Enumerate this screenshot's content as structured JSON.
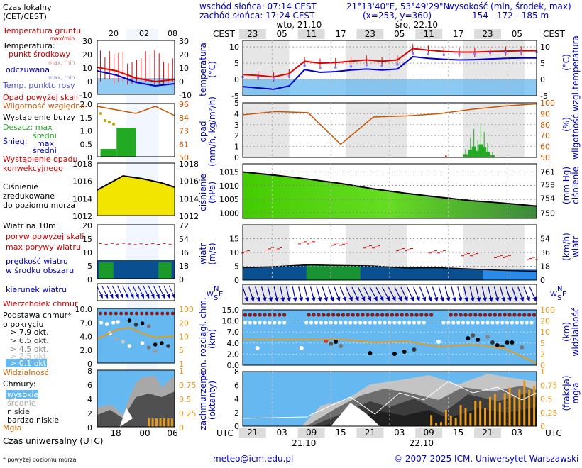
{
  "header": {
    "sunrise": "wschód słońca: 07:14 CEST",
    "sunset": "zachód słońca: 17:24 CEST",
    "coords": "21°13'40\"E, 53°49'29\"N",
    "grid": "(x=253, y=360)",
    "height_label": "wysokość (min, środek, max)",
    "height_values": "154 - 172 - 185 m"
  },
  "time_axis": {
    "top_label": "CEST",
    "top_hours": [
      "23",
      "05",
      "11",
      "17",
      "23",
      "05",
      "11",
      "17",
      "23",
      "05"
    ],
    "day_labels": [
      "wto, 21.10",
      "śro, 22.10"
    ],
    "bottom_label": "UTC",
    "bottom_hours": [
      "21",
      "03",
      "09",
      "15",
      "21",
      "03",
      "09",
      "15",
      "21",
      "03"
    ],
    "bottom_dates": [
      "21.10",
      "22.10"
    ]
  },
  "legend": {
    "timezone_title": "Czas lokalny\n(CET/CEST)",
    "timezone_hours": [
      "20",
      "02",
      "08"
    ],
    "ground_temp": "Temperatura gruntu",
    "ground_temp_sub": "max/min",
    "temperature": "Temperatura:",
    "mid_point": "punkt środkowy",
    "mid_point_sub": "max, min",
    "apparent": "odczuwana",
    "apparent_sub": "max, min",
    "dew_point": "Temp. punktu rosy",
    "temp_ticks": [
      "30",
      "20",
      "10",
      "0",
      "-10"
    ],
    "precip_over_scale": "Opad powyżej skali",
    "humidity": "Wilgotność względna",
    "storm": "Wystąpienie burzy",
    "rain": "Deszcz: max",
    "rain_mean": "średni",
    "snow": "Śnieg:",
    "snow_max": "max",
    "snow_mean": "średni",
    "precip_conv": "Wystąpienie opadu\nkonwekcyjnego",
    "precip_ticks": [
      "2.0",
      "1.5",
      "1.0",
      "0.5",
      "0"
    ],
    "hum_ticks": [
      "96",
      "84",
      "73",
      "61",
      "50"
    ],
    "pressure": "Ciśnienie\nzredukowane\ndo poziomu morza",
    "pressure_ticks": [
      "1018",
      "1016",
      "1014",
      "1012"
    ],
    "wind_title": "Wiatr na 10m:",
    "gust_over": "poryw powyżej skali",
    "gust_max": "max porywy wiatru",
    "wind_mean": "prędkość wiatru\nw środku obszaru",
    "wind_ticks": [
      "20",
      "15",
      "10",
      "5",
      "0"
    ],
    "wind_kmh_ticks": [
      "72",
      "54",
      "36",
      "18",
      "0"
    ],
    "wind_dir": "kierunek wiatru",
    "cloud_top": "Wierzchołek chmur",
    "cloud_base": "Podstawa chmur*\no pokryciu",
    "okt1": "> 7.9 okt.",
    "okt2": "> 6.5 okt.",
    "okt3": "> 4.5 okt.",
    "okt4": "> 2.5 okt.",
    "okt5": "> 0.1 okt.",
    "visibility": "Widzialność",
    "cb_ticks": [
      "10.0",
      "7.0",
      "4.0",
      "2.0",
      "0"
    ],
    "vis_ticks": [
      "100",
      "20",
      "10",
      "5",
      "1"
    ],
    "clouds": "Chmury:",
    "cl_high": "wysokie",
    "cl_mid": "średnie",
    "cl_low": "niskie",
    "cl_vlow": "bardzo niskie",
    "fog": "Mgła",
    "cc_ticks": [
      "8",
      "6",
      "4",
      "2",
      "0"
    ],
    "fog_ticks": [
      "1",
      "0.75",
      "0.5",
      "0.25",
      "0"
    ],
    "utc_hours": [
      "18",
      "00",
      "06"
    ],
    "utc_title": "Czas uniwersalny (UTC)",
    "footnote": "* powyżej poziomu morza"
  },
  "panels": {
    "temp": {
      "left": "temperatura\n(°C)",
      "right": "(°C)\ntemperatura",
      "ticks": [
        "10",
        "5",
        "0",
        "-5"
      ],
      "ticks_right": [
        "10",
        "5",
        "0",
        "-5"
      ]
    },
    "precip": {
      "left": "opad\n(mm/h, kg/m²/h)",
      "right": "(%)\nwilgotność wzgl.",
      "ticks": [
        "5",
        "4",
        "3",
        "2",
        "1",
        "0"
      ],
      "ticks_right": [
        "100",
        "90",
        "80",
        "70",
        "60",
        "50"
      ]
    },
    "pressure": {
      "left": "ciśnienie\n(hPa)",
      "right": "(mm Hg)\nciśnienie",
      "ticks": [
        "1015",
        "1010",
        "1005",
        "1000"
      ],
      "ticks_right": [
        "761",
        "758",
        "754",
        "750"
      ]
    },
    "wind": {
      "left": "wiatr\n(m/s)",
      "right": "(km/h)\nwiatr",
      "ticks": [
        "15",
        "10",
        "5",
        "0"
      ],
      "ticks_right": [
        "54",
        "36",
        "18",
        "0"
      ]
    },
    "winddir": {
      "left": "W\nS\nE\nN",
      "right": "W\nS\nE\nN"
    },
    "clouds": {
      "left": "pion. rozciągł. chm.\n(km)",
      "right": "(km)\nwidzialność",
      "ticks": [
        "15.0",
        "10.0",
        "7.0",
        "4.0",
        "2.0",
        "0.0"
      ],
      "ticks_right": [
        "100",
        "20",
        "10",
        "5",
        "2",
        "0"
      ]
    },
    "cover": {
      "left": "zachmurzenie\n(oktanty)",
      "right": "(frakcja)\nmgła",
      "ticks": [
        "8",
        "6",
        "4",
        "2",
        "0"
      ],
      "ticks_right": [
        "1",
        "0.75",
        "0.5",
        "0.25",
        "0"
      ]
    }
  },
  "footer": {
    "email": "meteo@icm.edu.pl",
    "copyright": "© 2007-2025 ICM, Uniwersytet Warszawski"
  },
  "colors": {
    "temp": "#e00000",
    "apparent": "#0000cc",
    "dew": "#8080ff",
    "humidity": "#cc5500",
    "pressure": "#44cc00",
    "wind": "#0050aa",
    "sky": "#66b8f0",
    "visibility": "#e89a1a",
    "cloud_dots": "#8b1a1a"
  },
  "chart_data": [
    {
      "type": "line",
      "title": "temperatura (°C)",
      "x": [
        "21",
        "00",
        "03",
        "06",
        "09",
        "12",
        "15",
        "18",
        "21",
        "00",
        "03",
        "06",
        "09",
        "12",
        "15",
        "18",
        "21",
        "00",
        "03",
        "06"
      ],
      "series": [
        {
          "name": "punkt środkowy",
          "values": [
            1.5,
            1.2,
            0.8,
            1.8,
            5.6,
            5.0,
            5.2,
            5.6,
            6.0,
            5.6,
            6.0,
            9.5,
            9.0,
            8.6,
            8.4,
            8.4,
            8.6,
            8.7,
            8.8,
            8.8
          ]
        },
        {
          "name": "odczuwana",
          "values": [
            -2.2,
            -2.6,
            -3.0,
            -2.0,
            3.0,
            2.2,
            2.4,
            2.9,
            3.2,
            2.9,
            3.2,
            7.0,
            6.5,
            6.2,
            6.0,
            6.1,
            6.3,
            6.5,
            6.6,
            6.6
          ]
        },
        {
          "name": "Temp. punktu rosy",
          "values": [
            0.8,
            0.6,
            0.2,
            1.0,
            4.3,
            3.6,
            3.7,
            4.0,
            4.4,
            4.2,
            4.6,
            8.0,
            7.8,
            7.6,
            7.7,
            7.9,
            8.2,
            8.3,
            8.4,
            8.4
          ]
        }
      ],
      "ylim": [
        -5,
        10
      ]
    },
    {
      "type": "line",
      "title": "wilgotność wzgl. (%)",
      "x": [
        "21",
        "03",
        "09",
        "15",
        "21",
        "03",
        "09",
        "15",
        "21",
        "03"
      ],
      "series": [
        {
          "name": "Wilgotność względna",
          "values": [
            89,
            92,
            91,
            62,
            87,
            88,
            90,
            94,
            97,
            99
          ]
        }
      ],
      "ylim": [
        50,
        100
      ]
    },
    {
      "type": "area",
      "title": "ciśnienie (hPa)",
      "x": [
        "21",
        "03",
        "09",
        "15",
        "21",
        "03",
        "09",
        "15",
        "21",
        "03"
      ],
      "series": [
        {
          "name": "ciśnienie",
          "values": [
            1015,
            1013.8,
            1012.4,
            1010.8,
            1008.8,
            1007.2,
            1005.8,
            1004.5,
            1003.6,
            1002.5
          ]
        }
      ],
      "ylim": [
        998,
        1018
      ]
    },
    {
      "type": "line",
      "title": "wiatr (m/s)",
      "x": [
        "21",
        "03",
        "09",
        "15",
        "21",
        "03",
        "09",
        "15",
        "21",
        "03"
      ],
      "series": [
        {
          "name": "prędkość wiatru",
          "values": [
            4.5,
            4.9,
            5.5,
            5.3,
            5.1,
            4.4,
            4.5,
            4.0,
            3.5,
            3.2
          ]
        },
        {
          "name": "max porywy wiatru",
          "values": [
            10.2,
            11.3,
            13.5,
            13.0,
            12.0,
            11.0,
            10.2,
            9.2,
            8.5,
            7.8
          ]
        }
      ],
      "ylim": [
        0,
        20
      ]
    },
    {
      "type": "line",
      "title": "widzialność (km)",
      "x": [
        "21",
        "03",
        "09",
        "15",
        "21",
        "03",
        "09",
        "15",
        "21",
        "03"
      ],
      "series": [
        {
          "name": "Widzialność",
          "values": [
            7.0,
            7.0,
            7.0,
            7.0,
            6.2,
            6.5,
            5.0,
            5.6,
            4.6,
            0.5
          ]
        }
      ],
      "ylim": [
        0,
        15
      ]
    },
    {
      "type": "bar",
      "title": "mgła (frakcja)",
      "categories": [
        "21",
        "03",
        "09",
        "15",
        "21",
        "03",
        "09",
        "15",
        "21",
        "03"
      ],
      "values": [
        0,
        0,
        0,
        0,
        0,
        0.08,
        0.15,
        0.25,
        0.45,
        0.75
      ],
      "ylim": [
        0,
        1
      ]
    }
  ]
}
